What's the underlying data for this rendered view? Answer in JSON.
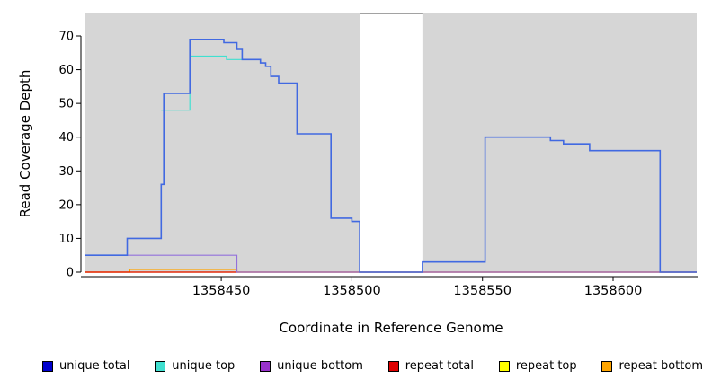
{
  "chart_data": {
    "type": "line",
    "step": true,
    "title": "",
    "xlabel": "Coordinate in Reference Genome",
    "ylabel": "Read Coverage Depth",
    "xlim": [
      1358398,
      1358632
    ],
    "ylim": [
      0,
      70
    ],
    "xticks": [
      1358450,
      1358500,
      1358550,
      1358600
    ],
    "yticks": [
      0,
      10,
      20,
      30,
      40,
      50,
      60,
      70
    ],
    "plot_background": "#d6d6d6",
    "gap_region": {
      "x0": 1358503,
      "x1": 1358527
    },
    "series": [
      {
        "name": "repeat top",
        "color": "#ffff00",
        "points": [
          [
            1358398,
            0
          ],
          [
            1358632,
            0
          ]
        ]
      },
      {
        "name": "repeat bottom",
        "color": "#ffa500",
        "points": [
          [
            1358398,
            0
          ],
          [
            1358415,
            0.8
          ],
          [
            1358456,
            0
          ],
          [
            1358632,
            0
          ]
        ]
      },
      {
        "name": "repeat total",
        "color": "#dd0000",
        "points": [
          [
            1358398,
            0
          ],
          [
            1358632,
            0
          ]
        ]
      },
      {
        "name": "unique bottom",
        "color": "#9370db",
        "points": [
          [
            1358398,
            5
          ],
          [
            1358456,
            0
          ],
          [
            1358632,
            0
          ]
        ]
      },
      {
        "name": "unique top",
        "color": "#40e0d0",
        "points": [
          [
            1358427,
            48
          ],
          [
            1358438,
            64
          ],
          [
            1358452,
            63
          ],
          [
            1358458,
            63
          ]
        ]
      },
      {
        "name": "unique total",
        "color": "#4169e1",
        "points": [
          [
            1358398,
            5
          ],
          [
            1358414,
            10
          ],
          [
            1358427,
            26
          ],
          [
            1358428,
            53
          ],
          [
            1358438,
            69
          ],
          [
            1358451,
            68
          ],
          [
            1358456,
            66
          ],
          [
            1358458,
            63
          ],
          [
            1358465,
            62
          ],
          [
            1358467,
            61
          ],
          [
            1358469,
            58
          ],
          [
            1358472,
            56
          ],
          [
            1358479,
            41
          ],
          [
            1358492,
            16
          ],
          [
            1358500,
            15
          ],
          [
            1358503,
            0
          ],
          [
            1358527,
            3
          ],
          [
            1358551,
            40
          ],
          [
            1358576,
            39
          ],
          [
            1358581,
            38
          ],
          [
            1358591,
            36
          ],
          [
            1358618,
            0
          ],
          [
            1358632,
            0
          ]
        ]
      }
    ],
    "legend": [
      {
        "label": "unique total",
        "color": "#0000cd"
      },
      {
        "label": "unique top",
        "color": "#40e0d0"
      },
      {
        "label": "unique bottom",
        "color": "#9932cc"
      },
      {
        "label": "repeat total",
        "color": "#dd0000"
      },
      {
        "label": "repeat top",
        "color": "#ffff00"
      },
      {
        "label": "repeat bottom",
        "color": "#ffa500"
      }
    ]
  }
}
